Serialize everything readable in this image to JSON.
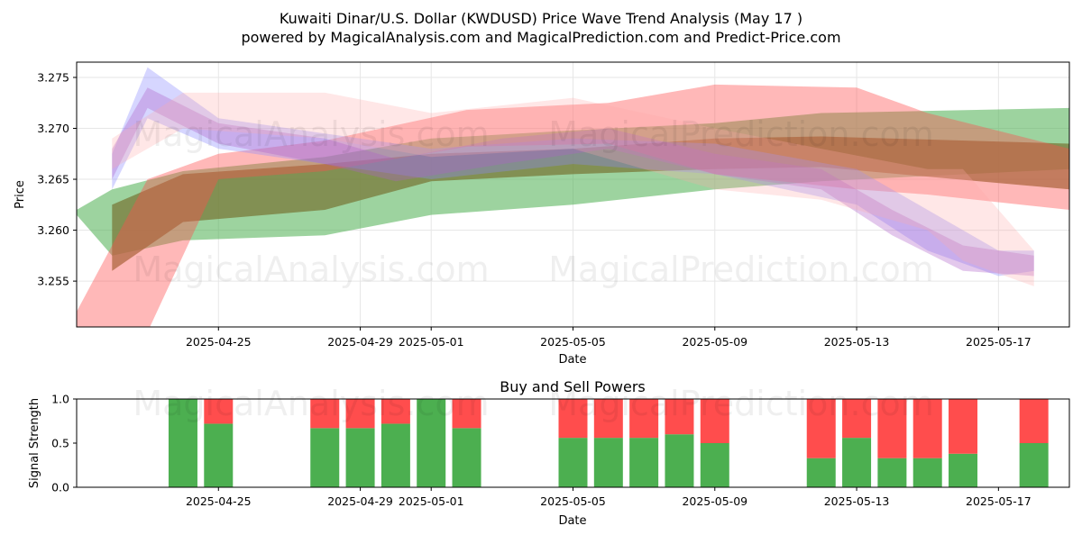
{
  "header": {
    "title": "Kuwaiti Dinar/U.S. Dollar (KWDUSD) Price Wave Trend Analysis (May 17 )",
    "subtitle": "powered by MagicalAnalysis.com and MagicalPrediction.com and Predict-Price.com"
  },
  "watermarks": [
    "MagicalAnalysis.com",
    "MagicalPrediction.com"
  ],
  "colors": {
    "green": "#4caf50",
    "red": "#ff4d4d",
    "blue": "#8a8aff",
    "bandGreen": "#228b22",
    "bandRed": "#ff2020"
  },
  "chart_data": [
    {
      "type": "area",
      "title": "",
      "xlabel": "Date",
      "ylabel": "Price",
      "xlim": [
        "2025-04-21",
        "2025-05-19"
      ],
      "ylim": [
        3.2505,
        3.2765
      ],
      "x_ticks": [
        "2025-04-25",
        "2025-04-29",
        "2025-05-01",
        "2025-05-05",
        "2025-05-09",
        "2025-05-13",
        "2025-05-17"
      ],
      "y_ticks": [
        "3.255",
        "3.260",
        "3.265",
        "3.270",
        "3.275"
      ],
      "grid": true,
      "series": [
        {
          "name": "green-band-main",
          "color": "green",
          "opacity": 0.55,
          "x": [
            "2025-04-21",
            "2025-04-22",
            "2025-04-24",
            "2025-04-28",
            "2025-05-01",
            "2025-05-05",
            "2025-05-09",
            "2025-05-12",
            "2025-05-19"
          ],
          "upper": [
            3.262,
            3.264,
            3.2658,
            3.2672,
            3.269,
            3.2698,
            3.2705,
            3.2715,
            3.272
          ],
          "lower": [
            3.2615,
            3.2575,
            3.259,
            3.2595,
            3.2615,
            3.2625,
            3.264,
            3.2648,
            3.266
          ]
        },
        {
          "name": "green-band-dark",
          "color": "olive",
          "opacity": 0.75,
          "x": [
            "2025-04-22",
            "2025-04-24",
            "2025-04-28",
            "2025-05-01",
            "2025-05-05",
            "2025-05-09",
            "2025-05-12",
            "2025-05-19"
          ],
          "upper": [
            3.2625,
            3.2655,
            3.2665,
            3.2675,
            3.268,
            3.269,
            3.2692,
            3.2685
          ],
          "lower": [
            3.256,
            3.2608,
            3.262,
            3.2648,
            3.2655,
            3.266,
            3.2662,
            3.264
          ]
        },
        {
          "name": "red-band-main",
          "color": "red",
          "opacity": 0.4,
          "x": [
            "2025-04-21",
            "2025-04-23",
            "2025-04-25",
            "2025-04-28",
            "2025-05-02",
            "2025-05-06",
            "2025-05-09",
            "2025-05-13",
            "2025-05-15",
            "2025-05-19"
          ],
          "upper": [
            3.252,
            3.265,
            3.2675,
            3.2688,
            3.2718,
            3.2725,
            3.2743,
            3.274,
            3.2715,
            3.268
          ],
          "lower": [
            3.25,
            3.25,
            3.265,
            3.2658,
            3.2682,
            3.2685,
            3.2655,
            3.264,
            3.2635,
            3.262
          ]
        },
        {
          "name": "blue-wave",
          "color": "blue",
          "opacity": 0.35,
          "x": [
            "2025-04-22",
            "2025-04-23",
            "2025-04-25",
            "2025-04-28",
            "2025-05-01",
            "2025-05-05",
            "2025-05-09",
            "2025-05-13",
            "2025-05-15",
            "2025-05-17",
            "2025-05-18"
          ],
          "upper": [
            3.2675,
            3.276,
            3.271,
            3.2695,
            3.268,
            3.269,
            3.2685,
            3.266,
            3.262,
            3.258,
            3.258
          ],
          "lower": [
            3.264,
            3.271,
            3.268,
            3.2665,
            3.265,
            3.2665,
            3.2655,
            3.2625,
            3.258,
            3.2555,
            3.256
          ]
        },
        {
          "name": "purple-wave",
          "color": "purple",
          "opacity": 0.35,
          "x": [
            "2025-04-22",
            "2025-04-23",
            "2025-04-25",
            "2025-04-28",
            "2025-04-30",
            "2025-05-03",
            "2025-05-06",
            "2025-05-09",
            "2025-05-12",
            "2025-05-14",
            "2025-05-16",
            "2025-05-18"
          ],
          "upper": [
            3.268,
            3.274,
            3.2705,
            3.269,
            3.267,
            3.269,
            3.27,
            3.2675,
            3.266,
            3.262,
            3.2585,
            3.2575
          ],
          "lower": [
            3.265,
            3.272,
            3.2685,
            3.2665,
            3.2648,
            3.2665,
            3.268,
            3.2655,
            3.264,
            3.2595,
            3.256,
            3.2555
          ]
        },
        {
          "name": "pink-wave",
          "color": "pink",
          "opacity": 0.28,
          "x": [
            "2025-04-22",
            "2025-04-24",
            "2025-04-28",
            "2025-05-01",
            "2025-05-05",
            "2025-05-09",
            "2025-05-12",
            "2025-05-15",
            "2025-05-16",
            "2025-05-18"
          ],
          "upper": [
            3.269,
            3.2735,
            3.2735,
            3.2715,
            3.273,
            3.27,
            3.268,
            3.266,
            3.266,
            3.258
          ],
          "lower": [
            3.266,
            3.27,
            3.269,
            3.2672,
            3.268,
            3.264,
            3.263,
            3.26,
            3.257,
            3.2545
          ]
        }
      ]
    },
    {
      "type": "bar",
      "title": "Buy and Sell Powers",
      "xlabel": "Date",
      "ylabel": "Signal Strength",
      "ylim": [
        0,
        1
      ],
      "y_ticks": [
        "0.0",
        "0.5",
        "1.0"
      ],
      "x_ticks": [
        "2025-04-25",
        "2025-04-29",
        "2025-05-01",
        "2025-05-05",
        "2025-05-09",
        "2025-05-13",
        "2025-05-17"
      ],
      "series_names": [
        "Buy",
        "Sell"
      ],
      "bars": [
        {
          "date": "2025-04-24",
          "buy": 1.0,
          "sell": 0.0
        },
        {
          "date": "2025-04-25",
          "buy": 0.72,
          "sell": 0.28
        },
        {
          "date": "2025-04-28",
          "buy": 0.67,
          "sell": 0.33
        },
        {
          "date": "2025-04-29",
          "buy": 0.67,
          "sell": 0.33
        },
        {
          "date": "2025-04-30",
          "buy": 0.72,
          "sell": 0.28
        },
        {
          "date": "2025-05-01",
          "buy": 1.0,
          "sell": 0.0
        },
        {
          "date": "2025-05-02",
          "buy": 0.67,
          "sell": 0.33
        },
        {
          "date": "2025-05-05",
          "buy": 0.56,
          "sell": 0.44
        },
        {
          "date": "2025-05-06",
          "buy": 0.56,
          "sell": 0.44
        },
        {
          "date": "2025-05-07",
          "buy": 0.56,
          "sell": 0.44
        },
        {
          "date": "2025-05-08",
          "buy": 0.6,
          "sell": 0.4
        },
        {
          "date": "2025-05-09",
          "buy": 0.5,
          "sell": 0.5
        },
        {
          "date": "2025-05-12",
          "buy": 0.33,
          "sell": 0.67
        },
        {
          "date": "2025-05-13",
          "buy": 0.56,
          "sell": 0.44
        },
        {
          "date": "2025-05-14",
          "buy": 0.33,
          "sell": 0.67
        },
        {
          "date": "2025-05-15",
          "buy": 0.33,
          "sell": 0.67
        },
        {
          "date": "2025-05-16",
          "buy": 0.38,
          "sell": 0.62
        },
        {
          "date": "2025-05-18",
          "buy": 0.5,
          "sell": 0.5
        }
      ]
    }
  ]
}
